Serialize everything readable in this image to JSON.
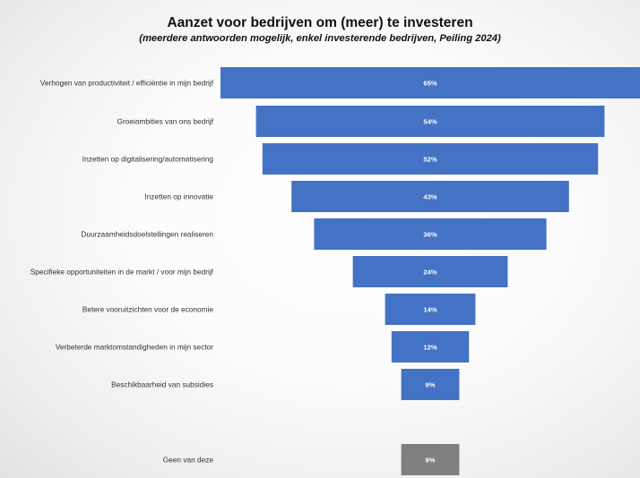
{
  "chart_data": {
    "type": "bar",
    "title": "Aanzet voor bedrijven om (meer) te investeren",
    "subtitle": "(meerdere antwoorden mogelijk, enkel investerende bedrijven, Peiling 2024)",
    "orientation": "horizontal-centered-funnel",
    "categories": [
      "Verhogen van productiviteit / efficiëntie in mijn bedrijf",
      "Groeiambities van ons bedrijf",
      "Inzetten op digitalisering/automatisering",
      "Inzetten op innovatie",
      "Duurzaamheidsdoelstellingen realiseren",
      "Specifieke opportuniteiten in de markt / voor mijn bedrijf",
      "Betere vooruitzichten voor de economie",
      "Verbeterde marktomstandigheden in mijn sector",
      "Beschikbaarheid van subsidies",
      "Geen van deze"
    ],
    "values": [
      65,
      54,
      52,
      43,
      36,
      24,
      14,
      12,
      9,
      9
    ],
    "value_labels": [
      "65%",
      "54%",
      "52%",
      "43%",
      "36%",
      "24%",
      "14%",
      "12%",
      "9%",
      "9%"
    ],
    "unit": "%",
    "xlim": [
      0,
      65
    ],
    "grid": false,
    "legend": "none",
    "colors": {
      "bar": "#4472c4",
      "bar_other": "#7f7f7f",
      "value_text": "#ffffff",
      "category_text": "#333333"
    }
  }
}
